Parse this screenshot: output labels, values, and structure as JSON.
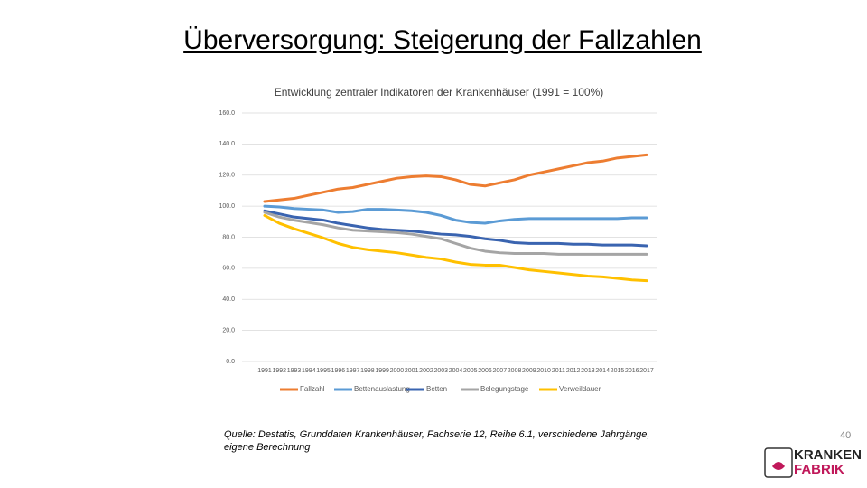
{
  "slide": {
    "title": "Überversorgung: Steigerung der Fallzahlen",
    "source": "Quelle: Destatis, Grunddaten Krankenhäuser, Fachserie 12, Reihe 6.1, verschiedene Jahrgänge, eigene Berechnung",
    "page_number": "40"
  },
  "logo": {
    "line1": "KRANKEN",
    "line2": "FABRIK"
  },
  "chart_data": {
    "type": "line",
    "title": "Entwicklung zentraler Indikatoren der Krankenhäuser (1991 = 100%)",
    "categories": [
      "1991",
      "1992",
      "1993",
      "1994",
      "1995",
      "1996",
      "1997",
      "1998",
      "1999",
      "2000",
      "2001",
      "2002",
      "2003",
      "2004",
      "2005",
      "2006",
      "2007",
      "2008",
      "2009",
      "2010",
      "2011",
      "2012",
      "2013",
      "2014",
      "2015",
      "2016",
      "2017"
    ],
    "series": [
      {
        "name": "Fallzahl",
        "color": "#ed7d31",
        "values": [
          103,
          104,
          105,
          107,
          109,
          111,
          112,
          114,
          116,
          118,
          119,
          119.5,
          119,
          117,
          114,
          113,
          115,
          117,
          120,
          122,
          124,
          126,
          128,
          129,
          131,
          132,
          133
        ]
      },
      {
        "name": "Bettenauslastung",
        "color": "#5b9bd5",
        "values": [
          100,
          99.5,
          98.5,
          98,
          97.5,
          96,
          96.5,
          98,
          98,
          97.5,
          97,
          96,
          94,
          91,
          89.5,
          89,
          90.5,
          91.5,
          92,
          92,
          92,
          92,
          92,
          92,
          92,
          92.5,
          92.5
        ]
      },
      {
        "name": "Betten",
        "color": "#3a64b0",
        "values": [
          97,
          95,
          93,
          92,
          91,
          89,
          87.5,
          86,
          85,
          84.5,
          84,
          83,
          82,
          81.5,
          80.5,
          79,
          78,
          76.5,
          76,
          76,
          76,
          75.5,
          75.5,
          75,
          75,
          75,
          74.5
        ]
      },
      {
        "name": "Belegungstage",
        "color": "#a5a5a5",
        "values": [
          96,
          93,
          91,
          89.5,
          88,
          86,
          84.5,
          84,
          83.5,
          83,
          82,
          80.5,
          79,
          76,
          73,
          71,
          70,
          69.5,
          69.5,
          69.5,
          69,
          69,
          69,
          69,
          69,
          69,
          69
        ]
      },
      {
        "name": "Verweildauer",
        "color": "#ffc000",
        "values": [
          94,
          89,
          85.5,
          82.5,
          79.5,
          76,
          73.5,
          72,
          71,
          70,
          68.5,
          67,
          66,
          64,
          62.5,
          62,
          62,
          60.5,
          59,
          58,
          57,
          56,
          55,
          54.5,
          53.5,
          52.5,
          52
        ]
      }
    ],
    "ylim": [
      0,
      160
    ],
    "yticks": [
      {
        "value": 0,
        "label": "0.0"
      },
      {
        "value": 20,
        "label": "20.0"
      },
      {
        "value": 40,
        "label": "40.0"
      },
      {
        "value": 60,
        "label": "60.0"
      },
      {
        "value": 80,
        "label": "80.0"
      },
      {
        "value": 100,
        "label": "100.0"
      },
      {
        "value": 120,
        "label": "120.0"
      },
      {
        "value": 140,
        "label": "140.0"
      },
      {
        "value": 160,
        "label": "160.0"
      }
    ],
    "grid": true,
    "legend": "bottom"
  }
}
